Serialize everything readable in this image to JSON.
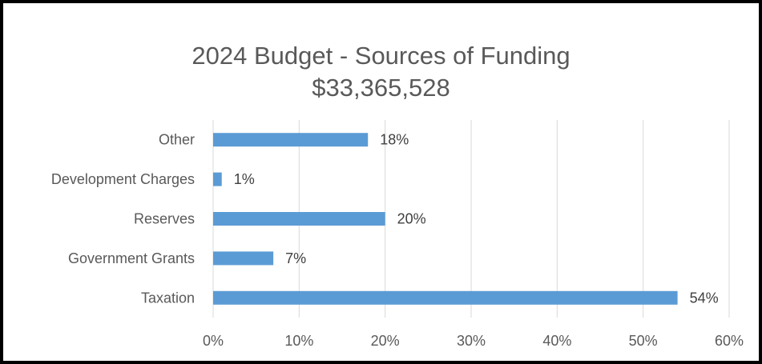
{
  "chart_data": {
    "type": "bar",
    "orientation": "horizontal",
    "title": "2024 Budget - Sources of Funding",
    "subtitle": "$33,365,528",
    "categories": [
      "Other",
      "Development Charges",
      "Reserves",
      "Government Grants",
      "Taxation"
    ],
    "values": [
      0.18,
      0.01,
      0.2,
      0.07,
      0.54
    ],
    "value_labels": [
      "18%",
      "1%",
      "20%",
      "7%",
      "54%"
    ],
    "xlim": [
      0,
      0.6
    ],
    "x_ticks": [
      0,
      0.1,
      0.2,
      0.3,
      0.4,
      0.5,
      0.6
    ],
    "x_tick_labels": [
      "0%",
      "10%",
      "20%",
      "30%",
      "40%",
      "50%",
      "60%"
    ],
    "grid": "vertical",
    "bar_color": "#5B9BD5",
    "legend": "none"
  }
}
